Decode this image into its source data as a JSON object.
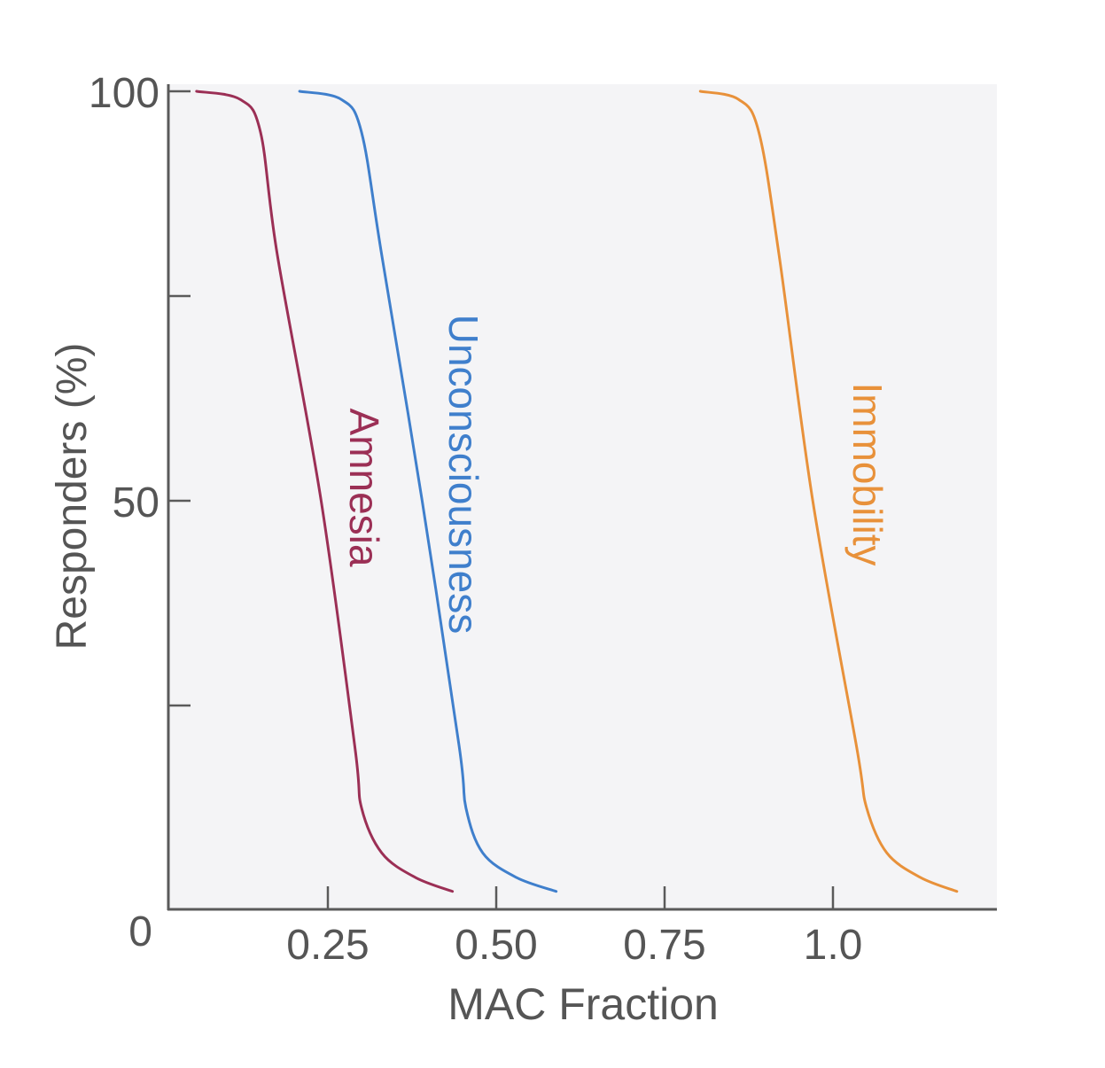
{
  "chart_data": {
    "type": "line",
    "title": "",
    "xlabel": "MAC Fraction",
    "ylabel": "Responders (%)",
    "xlim": [
      0,
      1.25
    ],
    "ylim": [
      0,
      100
    ],
    "x_ticks": [
      {
        "value": 0.25,
        "label": "0.25"
      },
      {
        "value": 0.5,
        "label": "0.50"
      },
      {
        "value": 0.75,
        "label": "0.75"
      },
      {
        "value": 1.0,
        "label": "1.0"
      }
    ],
    "y_ticks": [
      {
        "value": 100,
        "label": "100"
      },
      {
        "value": 75,
        "label": ""
      },
      {
        "value": 50,
        "label": "50"
      },
      {
        "value": 25,
        "label": ""
      },
      {
        "value": 0,
        "label": "0"
      }
    ],
    "grid": false,
    "background": "#f4f4f6",
    "series": [
      {
        "name": "Amnesia",
        "color": "#9b2f55",
        "points": [
          [
            0.055,
            100
          ],
          [
            0.12,
            99
          ],
          [
            0.15,
            95
          ],
          [
            0.175,
            80
          ],
          [
            0.24,
            50
          ],
          [
            0.29,
            20
          ],
          [
            0.3,
            12.5
          ],
          [
            0.33,
            7
          ],
          [
            0.38,
            4
          ],
          [
            0.435,
            2.3
          ]
        ]
      },
      {
        "name": "Unconsciousness",
        "color": "#3f7fcc",
        "points": [
          [
            0.208,
            100
          ],
          [
            0.27,
            99
          ],
          [
            0.3,
            95
          ],
          [
            0.33,
            80
          ],
          [
            0.39,
            50
          ],
          [
            0.445,
            20
          ],
          [
            0.455,
            12.5
          ],
          [
            0.48,
            7
          ],
          [
            0.53,
            4
          ],
          [
            0.589,
            2.3
          ]
        ]
      },
      {
        "name": "Immobility",
        "color": "#e8913a",
        "points": [
          [
            0.803,
            100
          ],
          [
            0.86,
            99
          ],
          [
            0.89,
            95
          ],
          [
            0.92,
            80
          ],
          [
            0.97,
            50
          ],
          [
            1.035,
            20
          ],
          [
            1.05,
            12.5
          ],
          [
            1.08,
            7
          ],
          [
            1.13,
            4
          ],
          [
            1.184,
            2.3
          ]
        ]
      }
    ]
  }
}
